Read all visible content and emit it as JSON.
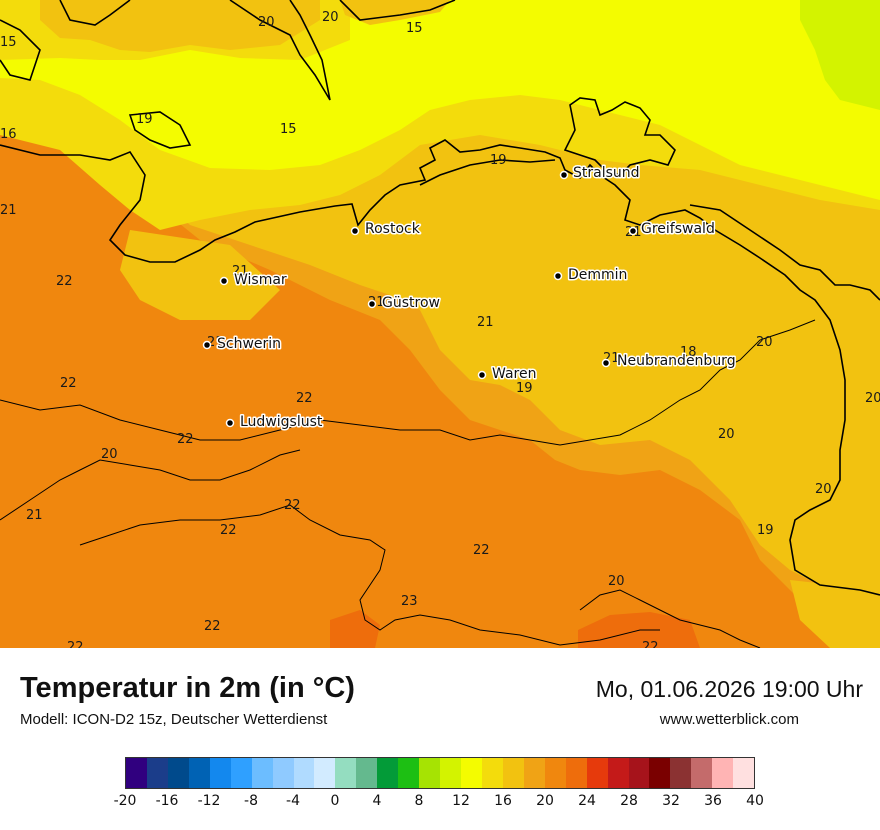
{
  "map": {
    "value_labels": [
      "15",
      "20",
      "20",
      "15",
      "16",
      "19",
      "15",
      "19",
      "21",
      "22",
      "21",
      "22",
      "21",
      "21",
      "21",
      "21",
      "22",
      "20",
      "22",
      "22",
      "21",
      "22",
      "22",
      "23",
      "22",
      "22",
      "19",
      "21",
      "18",
      "20",
      "20",
      "20",
      "19",
      "20",
      "22",
      "20",
      "21"
    ],
    "cities": [
      "Rostock",
      "Stralsund",
      "Greifswald",
      "Wismar",
      "Demmin",
      "Güstrow",
      "Schwerin",
      "Neubrandenburg",
      "Waren",
      "Ludwigslust"
    ],
    "colors": {
      "yellow_15": "#f4fc00",
      "yellow_16": "#f3dc0c",
      "amber_20": "#f2c210",
      "orange_21": "#f0a315",
      "orange_22": "#f0870e",
      "orange_23": "#ee6d0c",
      "lime_14": "#d3f300"
    }
  },
  "footer": {
    "title": "Temperatur in 2m (in °C)",
    "model": "Modell: ICON-D2 15z, Deutscher Wetterdienst",
    "datetime": "Mo, 01.06.2026 19:00 Uhr",
    "website": "www.wetterblick.com"
  },
  "legend": {
    "colors": [
      "#30007f",
      "#1b3d8a",
      "#004a8c",
      "#0062b4",
      "#1388ee",
      "#2fa0ff",
      "#6cbdff",
      "#8fcaff",
      "#b0dbff",
      "#d2ebff",
      "#94ddc0",
      "#64b98e",
      "#039b38",
      "#1dbf13",
      "#a6e303",
      "#d3f300",
      "#f4fc00",
      "#f3dc0c",
      "#f2c210",
      "#f0a315",
      "#f0870e",
      "#ee6d0c",
      "#e63a0c",
      "#c41a19",
      "#a6131b",
      "#7a0000",
      "#8b3232",
      "#c46b6b",
      "#ffb4b4",
      "#ffe0e0"
    ],
    "ticks": [
      "-20",
      "-16",
      "-12",
      "-8",
      "-4",
      "0",
      "4",
      "8",
      "12",
      "16",
      "20",
      "24",
      "28",
      "32",
      "36",
      "40"
    ]
  }
}
